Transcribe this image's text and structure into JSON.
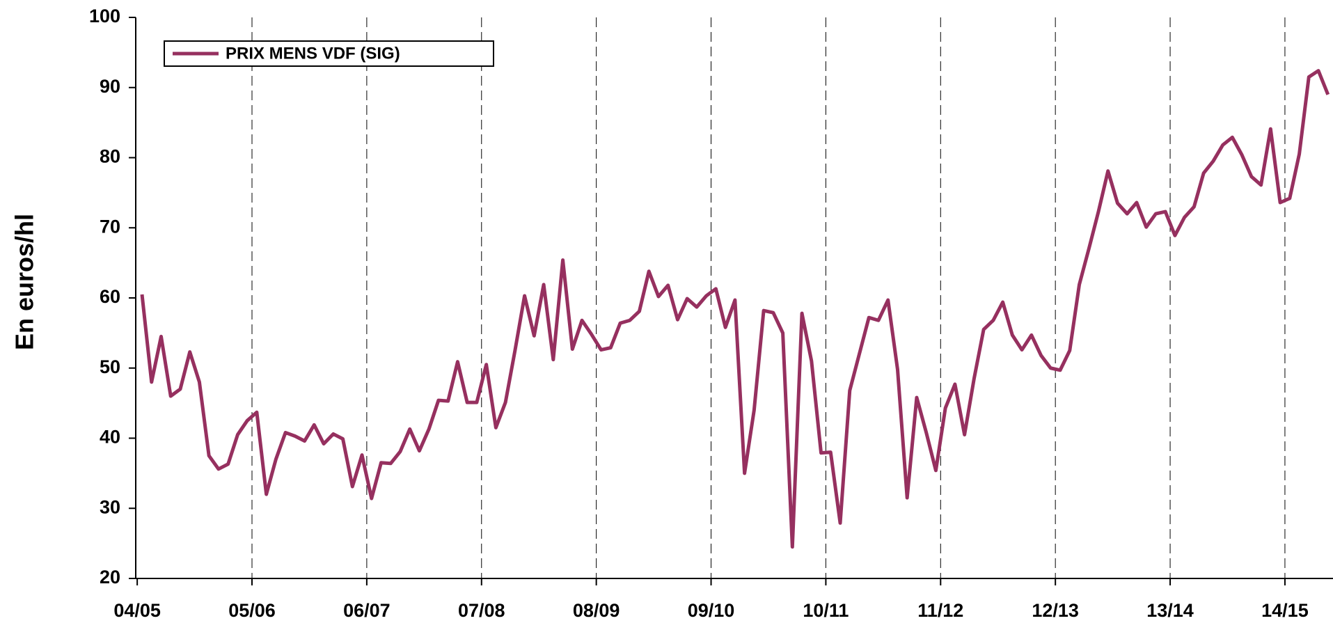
{
  "chart_data": {
    "type": "line",
    "y_label": "En euros/hl",
    "categories": [
      "04/05",
      null,
      null,
      null,
      null,
      null,
      null,
      null,
      null,
      null,
      null,
      null,
      "05/06",
      null,
      null,
      null,
      null,
      null,
      null,
      null,
      null,
      null,
      null,
      null,
      "06/07",
      null,
      null,
      null,
      null,
      null,
      null,
      null,
      null,
      null,
      null,
      null,
      "07/08",
      null,
      null,
      null,
      null,
      null,
      null,
      null,
      null,
      null,
      null,
      null,
      "08/09",
      null,
      null,
      null,
      null,
      null,
      null,
      null,
      null,
      null,
      null,
      null,
      "09/10",
      null,
      null,
      null,
      null,
      null,
      null,
      null,
      null,
      null,
      null,
      null,
      "10/11",
      null,
      null,
      null,
      null,
      null,
      null,
      null,
      null,
      null,
      null,
      null,
      "11/12",
      null,
      null,
      null,
      null,
      null,
      null,
      null,
      null,
      null,
      null,
      null,
      "12/13",
      null,
      null,
      null,
      null,
      null,
      null,
      null,
      null,
      null,
      null,
      null,
      "13/14",
      null,
      null,
      null,
      null,
      null,
      null,
      null,
      null,
      null,
      null,
      null,
      "14/15",
      null,
      null,
      null,
      null
    ],
    "series": [
      {
        "name": "PRIX MENS VDF (SIG)",
        "color": "#96305f",
        "values": [
          60.5,
          48,
          54.5,
          46,
          47,
          52.3,
          48,
          37.5,
          35.6,
          36.3,
          40.5,
          42.5,
          43.7,
          32,
          37,
          40.8,
          40.3,
          39.6,
          41.9,
          39.2,
          40.6,
          39.9,
          33.1,
          37.6,
          31.4,
          36.5,
          36.4,
          38.1,
          41.3,
          38.2,
          41.3,
          45.4,
          45.3,
          50.9,
          45.1,
          45.1,
          50.5,
          41.5,
          45.1,
          52.5,
          60.3,
          54.6,
          61.9,
          51.2,
          65.4,
          52.7,
          56.8,
          54.8,
          52.6,
          52.9,
          56.4,
          56.8,
          58.1,
          63.8,
          60.2,
          61.8,
          56.9,
          59.9,
          58.7,
          60.3,
          61.3,
          55.8,
          59.7,
          35,
          44,
          58.2,
          57.9,
          55,
          24.5,
          57.8,
          51,
          37.9,
          38,
          27.9,
          46.8,
          52,
          57.2,
          56.8,
          59.7,
          49.8,
          31.5,
          45.8,
          40.8,
          35.4,
          44.3,
          47.7,
          40.5,
          48.5,
          55.5,
          56.8,
          59.4,
          54.7,
          52.6,
          54.7,
          51.8,
          50,
          49.7,
          52.5,
          61.9,
          67,
          72.3,
          78.1,
          73.5,
          72,
          73.6,
          70.1,
          72,
          72.3,
          68.9,
          71.5,
          73,
          77.8,
          79.5,
          81.8,
          82.9,
          80.4,
          77.3,
          76.1,
          84.1,
          73.6,
          74.2,
          80.5,
          91.5,
          92.4,
          89
        ]
      }
    ],
    "ylim": [
      20,
      100
    ],
    "yticks": [
      20,
      30,
      40,
      50,
      60,
      70,
      80,
      90,
      100
    ],
    "grid": "x",
    "legend": "upper left"
  }
}
